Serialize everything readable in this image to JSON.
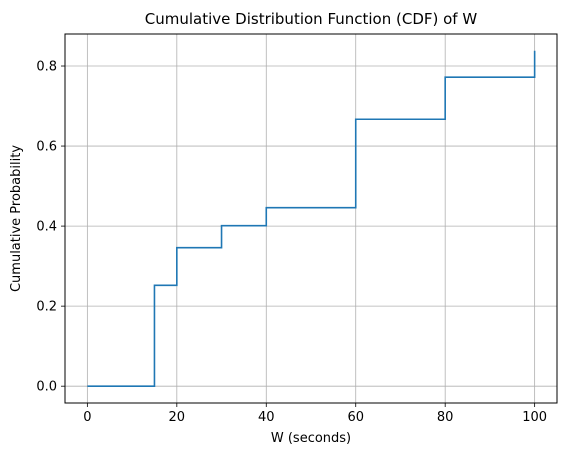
{
  "chart_data": {
    "type": "line",
    "step": "post",
    "title": "Cumulative Distribution Function (CDF) of W",
    "xlabel": "W (seconds)",
    "ylabel": "Cumulative Probability",
    "xlim": [
      -5,
      105
    ],
    "ylim": [
      -0.042,
      0.88
    ],
    "grid": true,
    "line_color": "#1f77b4",
    "x_ticks": [
      0,
      20,
      40,
      60,
      80,
      100
    ],
    "x_tick_labels": [
      "0",
      "20",
      "40",
      "60",
      "80",
      "100"
    ],
    "y_ticks": [
      0.0,
      0.2,
      0.4,
      0.6,
      0.8
    ],
    "y_tick_labels": [
      "0.0",
      "0.2",
      "0.4",
      "0.6",
      "0.8"
    ],
    "series": [
      {
        "x": [
          0,
          15,
          20,
          30,
          40,
          60,
          80,
          100
        ],
        "y": [
          0.0,
          0.252,
          0.346,
          0.401,
          0.446,
          0.667,
          0.772,
          0.838
        ]
      }
    ]
  }
}
